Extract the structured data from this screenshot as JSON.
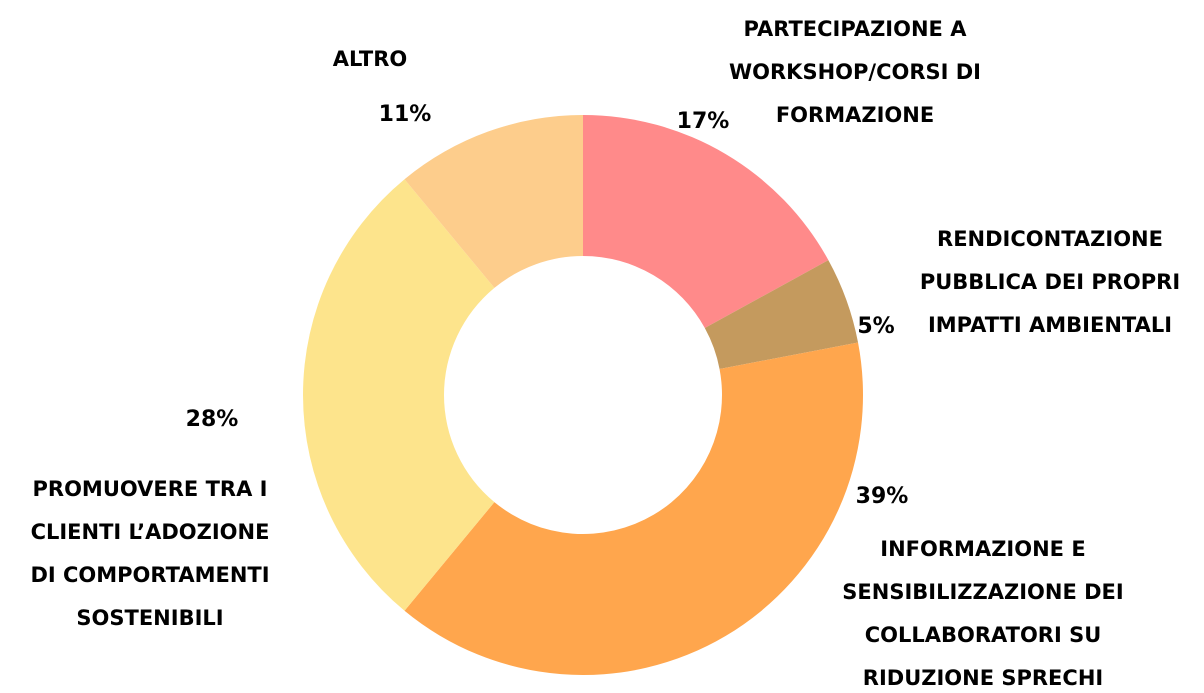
{
  "chart_data": {
    "type": "donut",
    "categories": [
      [
        "PARTECIPAZIONE A",
        "WORKSHOP/CORSI DI",
        "FORMAZIONE"
      ],
      [
        "RENDICONTAZIONE",
        "PUBBLICA DEI PROPRI",
        "IMPATTI AMBIENTALI"
      ],
      [
        "INFORMAZIONE E",
        "SENSIBILIZZAZIONE DEI",
        "COLLABORATORI SU",
        "RIDUZIONE SPRECHI"
      ],
      [
        "PROMUOVERE TRA I",
        "CLIENTI L’ADOZIONE",
        "DI COMPORTAMENTI",
        "SOSTENIBILI"
      ],
      [
        "ALTRO"
      ]
    ],
    "values": [
      17,
      5,
      39,
      28,
      11
    ],
    "value_labels": [
      "17%",
      "5%",
      "39%",
      "28%",
      "11%"
    ],
    "colors": [
      "#ff8a8a",
      "#c49a5e",
      "#ffa64d",
      "#fde48c",
      "#fdcd8c"
    ]
  }
}
